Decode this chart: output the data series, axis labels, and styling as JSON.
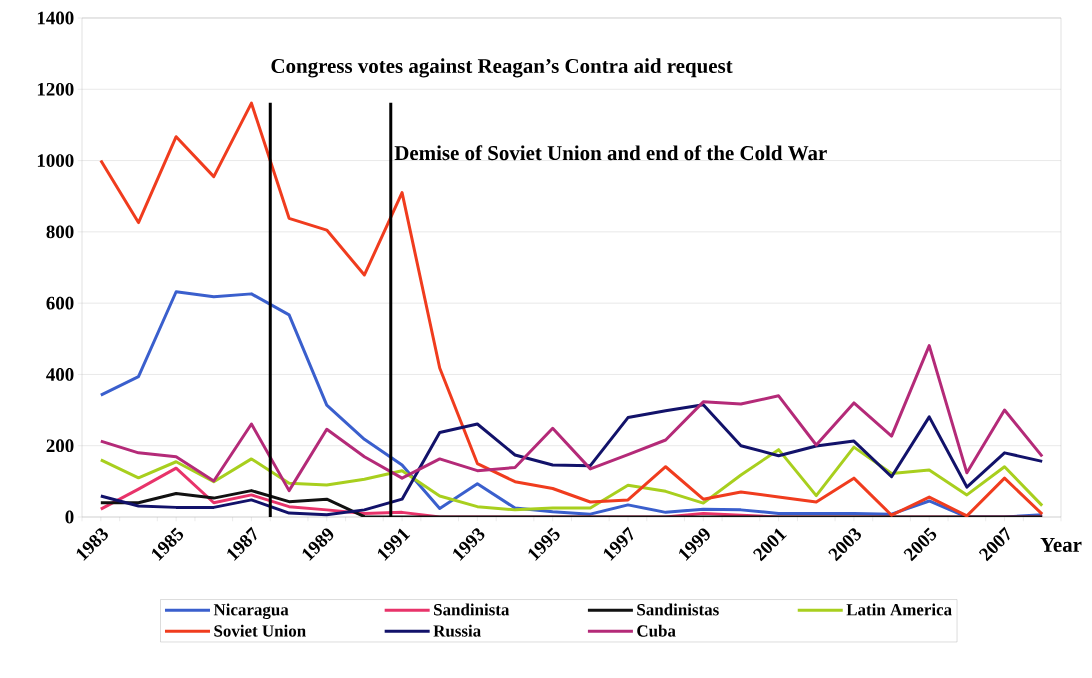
{
  "chart_data": {
    "type": "line",
    "xlabel": "Year",
    "x": [
      1983,
      1984,
      1985,
      1986,
      1987,
      1988,
      1989,
      1990,
      1991,
      1992,
      1993,
      1994,
      1995,
      1996,
      1997,
      1998,
      1999,
      2000,
      2001,
      2002,
      2003,
      2004,
      2005,
      2006,
      2007,
      2008
    ],
    "xlim": [
      1982.5,
      2008.5
    ],
    "xticks": [
      {
        "value": 1982.5,
        "label": null
      },
      1983,
      {
        "value": 1983.5,
        "label": null
      },
      {
        "value": 1984.5,
        "label": null
      },
      1985,
      {
        "value": 1985.5,
        "label": null
      },
      {
        "value": 1986.5,
        "label": null
      },
      1987,
      {
        "value": 1987.5,
        "label": null
      },
      {
        "value": 1988.5,
        "label": null
      },
      1989,
      {
        "value": 1989.5,
        "label": null
      },
      {
        "value": 1990.5,
        "label": null
      },
      1991,
      {
        "value": 1991.5,
        "label": null
      },
      {
        "value": 1992.5,
        "label": null
      },
      1993,
      {
        "value": 1993.5,
        "label": null
      },
      {
        "value": 1994.5,
        "label": null
      },
      1995,
      {
        "value": 1995.5,
        "label": null
      },
      {
        "value": 1996.5,
        "label": null
      },
      1997,
      {
        "value": 1997.5,
        "label": null
      },
      {
        "value": 1998.5,
        "label": null
      },
      1999,
      {
        "value": 1999.5,
        "label": null
      },
      {
        "value": 2000.5,
        "label": null
      },
      2001,
      {
        "value": 2001.5,
        "label": null
      },
      {
        "value": 2002.5,
        "label": null
      },
      2003,
      {
        "value": 2003.5,
        "label": null
      },
      {
        "value": 2004.5,
        "label": null
      },
      2005,
      {
        "value": 2005.5,
        "label": null
      },
      {
        "value": 2006.5,
        "label": null
      },
      2007,
      {
        "value": 2007.5,
        "label": null
      },
      {
        "value": 2008.5,
        "label": null
      }
    ],
    "ylim": [
      0,
      1400
    ],
    "yticks": [
      0,
      200,
      400,
      600,
      800,
      1000,
      1200,
      1400
    ],
    "grid": "y",
    "legend": "bottom",
    "marker": "none",
    "line_style": "solid",
    "series": [
      {
        "name": "Nicaragua",
        "color": "#3a5fcd",
        "values": [
          342,
          394,
          632,
          618,
          626,
          567,
          314,
          218,
          146,
          24,
          93,
          25,
          15,
          8,
          34,
          13,
          22,
          20,
          10,
          10,
          10,
          8,
          45,
          0,
          0,
          6
        ]
      },
      {
        "name": "Sandinista",
        "color": "#e8336a",
        "values": [
          22,
          78,
          137,
          40,
          62,
          29,
          20,
          10,
          13,
          0,
          0,
          0,
          0,
          0,
          0,
          0,
          10,
          5,
          0,
          0,
          0,
          0,
          0,
          0,
          0,
          0
        ]
      },
      {
        "name": "Sandinistas",
        "color": "#111111",
        "values": [
          40,
          40,
          66,
          53,
          74,
          43,
          50,
          1,
          0,
          0,
          0,
          0,
          0,
          0,
          0,
          0,
          0,
          0,
          0,
          0,
          0,
          0,
          0,
          0,
          0,
          0
        ]
      },
      {
        "name": "Latin America",
        "color": "#a8cf1e",
        "values": [
          160,
          110,
          155,
          99,
          163,
          95,
          90,
          106,
          130,
          59,
          29,
          20,
          25,
          25,
          89,
          72,
          39,
          118,
          189,
          60,
          196,
          122,
          132,
          62,
          141,
          32
        ]
      },
      {
        "name": "Soviet Union",
        "color": "#f03c1e",
        "values": [
          1000,
          826,
          1067,
          955,
          1161,
          838,
          805,
          679,
          910,
          418,
          150,
          99,
          80,
          42,
          48,
          141,
          50,
          70,
          56,
          42,
          109,
          5,
          56,
          3,
          109,
          8
        ]
      },
      {
        "name": "Russia",
        "color": "#12126a",
        "values": [
          59,
          31,
          27,
          27,
          48,
          11,
          6,
          20,
          50,
          237,
          261,
          174,
          146,
          144,
          279,
          298,
          315,
          200,
          172,
          199,
          213,
          113,
          281,
          84,
          180,
          156
        ]
      },
      {
        "name": "Cuba",
        "color": "#b42a78",
        "values": [
          213,
          180,
          169,
          101,
          261,
          74,
          246,
          169,
          109,
          163,
          130,
          139,
          249,
          135,
          175,
          216,
          323,
          317,
          340,
          202,
          320,
          227,
          481,
          124,
          300,
          170
        ]
      }
    ],
    "ref_lines": [
      {
        "axis": "x",
        "value": 1987.5,
        "label": "Congress votes against Reagan’s Contra aid request",
        "color": "#000000"
      },
      {
        "axis": "x",
        "value": 1990.7,
        "label": "Demise of Soviet Union and end of the Cold War",
        "color": "#000000"
      }
    ]
  }
}
